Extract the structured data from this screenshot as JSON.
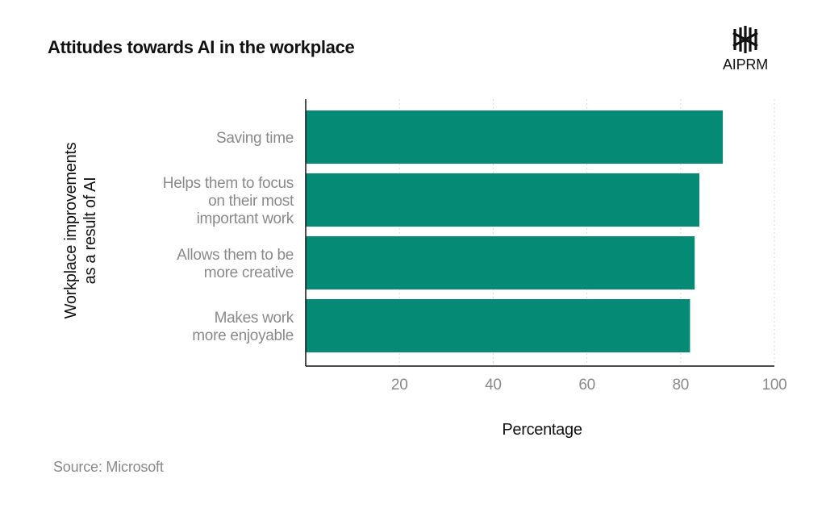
{
  "title": "Attitudes towards AI in the workplace",
  "logo": {
    "text": "AIPRM",
    "icon": "aiprm-logo-icon"
  },
  "source": "Source: Microsoft",
  "colors": {
    "bar": "#058a75",
    "label": "#8a8a8a",
    "title": "#111111",
    "grid": "#d9d9d9",
    "axis": "#111111"
  },
  "chart_data": {
    "type": "bar",
    "orientation": "horizontal",
    "categories": [
      [
        "Saving time"
      ],
      [
        "Helps them to focus",
        "on their most",
        "important work"
      ],
      [
        "Allows them to be",
        "more creative"
      ],
      [
        "Makes work",
        "more enjoyable"
      ]
    ],
    "values": [
      89,
      84,
      83,
      82
    ],
    "xlabel": "Percentage",
    "ylabel": [
      "Workplace improvements",
      "as a result of AI"
    ],
    "xlim": [
      0,
      100
    ],
    "xticks": [
      20,
      40,
      60,
      80,
      100
    ],
    "grid": true
  }
}
